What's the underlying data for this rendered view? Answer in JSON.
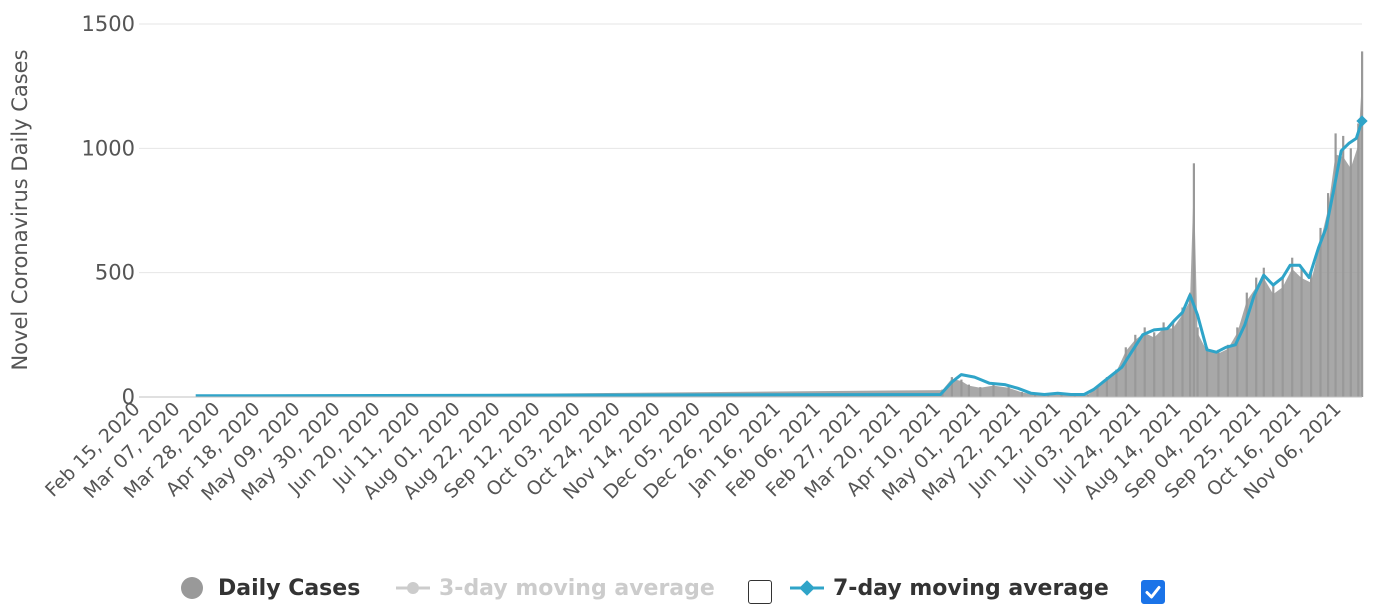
{
  "chart_data": {
    "type": "bar",
    "ylabel": "Novel Coronavirus Daily Cases",
    "ylim": [
      0,
      1500
    ],
    "yticks": [
      0,
      500,
      1000,
      1500
    ],
    "xlim": [
      "2020-02-15",
      "2021-11-23"
    ],
    "xtick_labels": [
      "Feb 15, 2020",
      "Mar 07, 2020",
      "Mar 28, 2020",
      "Apr 18, 2020",
      "May 09, 2020",
      "May 30, 2020",
      "Jun 20, 2020",
      "Jul 11, 2020",
      "Aug 01, 2020",
      "Aug 22, 2020",
      "Sep 12, 2020",
      "Oct 03, 2020",
      "Oct 24, 2020",
      "Nov 14, 2020",
      "Dec 05, 2020",
      "Dec 26, 2020",
      "Jan 16, 2021",
      "Feb 06, 2021",
      "Feb 27, 2021",
      "Mar 20, 2021",
      "Apr 10, 2021",
      "May 01, 2021",
      "May 22, 2021",
      "Jun 12, 2021",
      "Jul 03, 2021",
      "Jul 24, 2021",
      "Aug 14, 2021",
      "Sep 04, 2021",
      "Sep 25, 2021",
      "Oct 16, 2021",
      "Nov 06, 2021"
    ],
    "grid": true,
    "legend_position": "bottom",
    "series": [
      {
        "name": "Daily Cases",
        "kind": "bar",
        "color": "#999999",
        "x": [
          "2020-02-15",
          "2021-04-15",
          "2021-04-20",
          "2021-04-25",
          "2021-04-29",
          "2021-05-05",
          "2021-05-12",
          "2021-05-20",
          "2021-05-27",
          "2021-06-03",
          "2021-06-10",
          "2021-06-17",
          "2021-06-24",
          "2021-07-01",
          "2021-07-06",
          "2021-07-11",
          "2021-07-16",
          "2021-07-21",
          "2021-07-26",
          "2021-07-31",
          "2021-08-05",
          "2021-08-10",
          "2021-08-15",
          "2021-08-20",
          "2021-08-24",
          "2021-08-26",
          "2021-08-28",
          "2021-09-02",
          "2021-09-08",
          "2021-09-13",
          "2021-09-18",
          "2021-09-23",
          "2021-09-28",
          "2021-10-02",
          "2021-10-07",
          "2021-10-12",
          "2021-10-17",
          "2021-10-22",
          "2021-10-27",
          "2021-11-01",
          "2021-11-05",
          "2021-11-09",
          "2021-11-13",
          "2021-11-17",
          "2021-11-21",
          "2021-11-23"
        ],
        "values": [
          0,
          30,
          80,
          70,
          50,
          40,
          50,
          40,
          20,
          10,
          10,
          10,
          10,
          10,
          40,
          80,
          110,
          200,
          250,
          280,
          260,
          300,
          300,
          360,
          420,
          940,
          280,
          200,
          190,
          210,
          280,
          420,
          480,
          520,
          450,
          480,
          560,
          520,
          500,
          680,
          820,
          1060,
          1050,
          1000,
          1100,
          1390
        ]
      },
      {
        "name": "3-day moving average",
        "kind": "line",
        "color": "#cccccc",
        "hidden": true
      },
      {
        "name": "7-day moving average",
        "kind": "line",
        "color": "#2fa4c8",
        "x": [
          "2020-03-16",
          "2021-04-14",
          "2021-04-20",
          "2021-04-25",
          "2021-05-02",
          "2021-05-10",
          "2021-05-18",
          "2021-05-25",
          "2021-06-01",
          "2021-06-08",
          "2021-06-15",
          "2021-06-22",
          "2021-06-29",
          "2021-07-04",
          "2021-07-09",
          "2021-07-14",
          "2021-07-19",
          "2021-07-24",
          "2021-07-30",
          "2021-08-05",
          "2021-08-12",
          "2021-08-16",
          "2021-08-20",
          "2021-08-24",
          "2021-08-28",
          "2021-09-02",
          "2021-09-07",
          "2021-09-12",
          "2021-09-17",
          "2021-09-22",
          "2021-09-27",
          "2021-10-02",
          "2021-10-07",
          "2021-10-12",
          "2021-10-16",
          "2021-10-21",
          "2021-10-26",
          "2021-10-31",
          "2021-11-04",
          "2021-11-08",
          "2021-11-12",
          "2021-11-16",
          "2021-11-20",
          "2021-11-23"
        ],
        "values": [
          5,
          10,
          60,
          90,
          80,
          55,
          50,
          35,
          15,
          10,
          15,
          10,
          10,
          30,
          60,
          90,
          120,
          180,
          250,
          270,
          275,
          310,
          340,
          410,
          330,
          190,
          180,
          200,
          210,
          290,
          410,
          490,
          450,
          480,
          530,
          530,
          480,
          600,
          680,
          830,
          990,
          1020,
          1040,
          1110
        ]
      }
    ]
  },
  "legend": {
    "items": [
      {
        "label": "Daily Cases",
        "color": "#999999",
        "active": true
      },
      {
        "label": "3-day moving average",
        "color": "#cccccc",
        "active": false
      },
      {
        "label": "7-day moving average",
        "color": "#2fa4c8",
        "active": true
      }
    ]
  },
  "controls": {
    "checkbox_3day_checked": false,
    "checkbox_7day_checked": true,
    "checked_color": "#1a73e8"
  }
}
